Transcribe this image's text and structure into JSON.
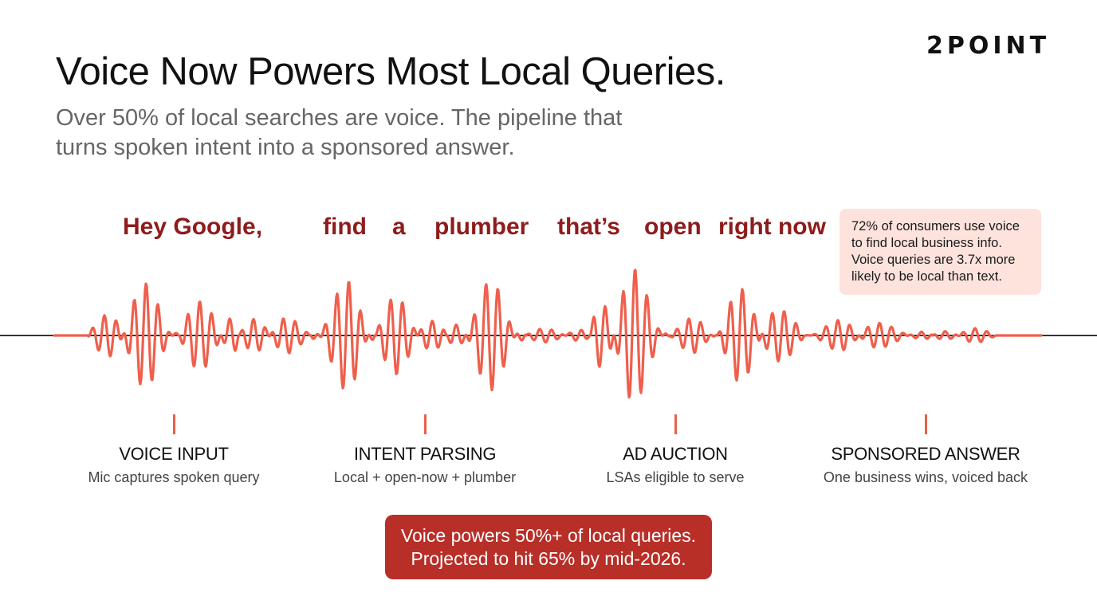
{
  "brand": {
    "logo": "2POINT"
  },
  "header": {
    "title": "Voice Now Powers Most Local Queries.",
    "subtitle_line1": "Over 50% of local searches are voice. The pipeline that",
    "subtitle_line2": "turns spoken intent into a sponsored answer."
  },
  "utterance": {
    "words": [
      "Hey Google,",
      "find",
      "a",
      "plumber",
      "that’s",
      "open",
      "right now"
    ]
  },
  "callout": {
    "line1": "72% of consumers use voice",
    "line2": "to find local business info.",
    "line3": "Voice queries are 3.7x more",
    "line4": "likely to be local than text."
  },
  "pipeline": {
    "stages": [
      {
        "label": "VOICE INPUT",
        "desc": "Mic captures spoken query"
      },
      {
        "label": "INTENT PARSING",
        "desc": "Local + open-now + plumber"
      },
      {
        "label": "AD AUCTION",
        "desc": "LSAs eligible to serve"
      },
      {
        "label": "SPONSORED ANSWER",
        "desc": "One business wins, voiced back"
      }
    ]
  },
  "banner": {
    "line1": "Voice powers 50%+ of local queries.",
    "line2": "Projected to hit 65% by mid-2026."
  },
  "colors": {
    "waveform": "#ef5f4c",
    "baseline": "#333333",
    "word_text": "#8e1c1c",
    "callout_bg": "#fde3dc",
    "banner_bg": "#b82f28"
  }
}
